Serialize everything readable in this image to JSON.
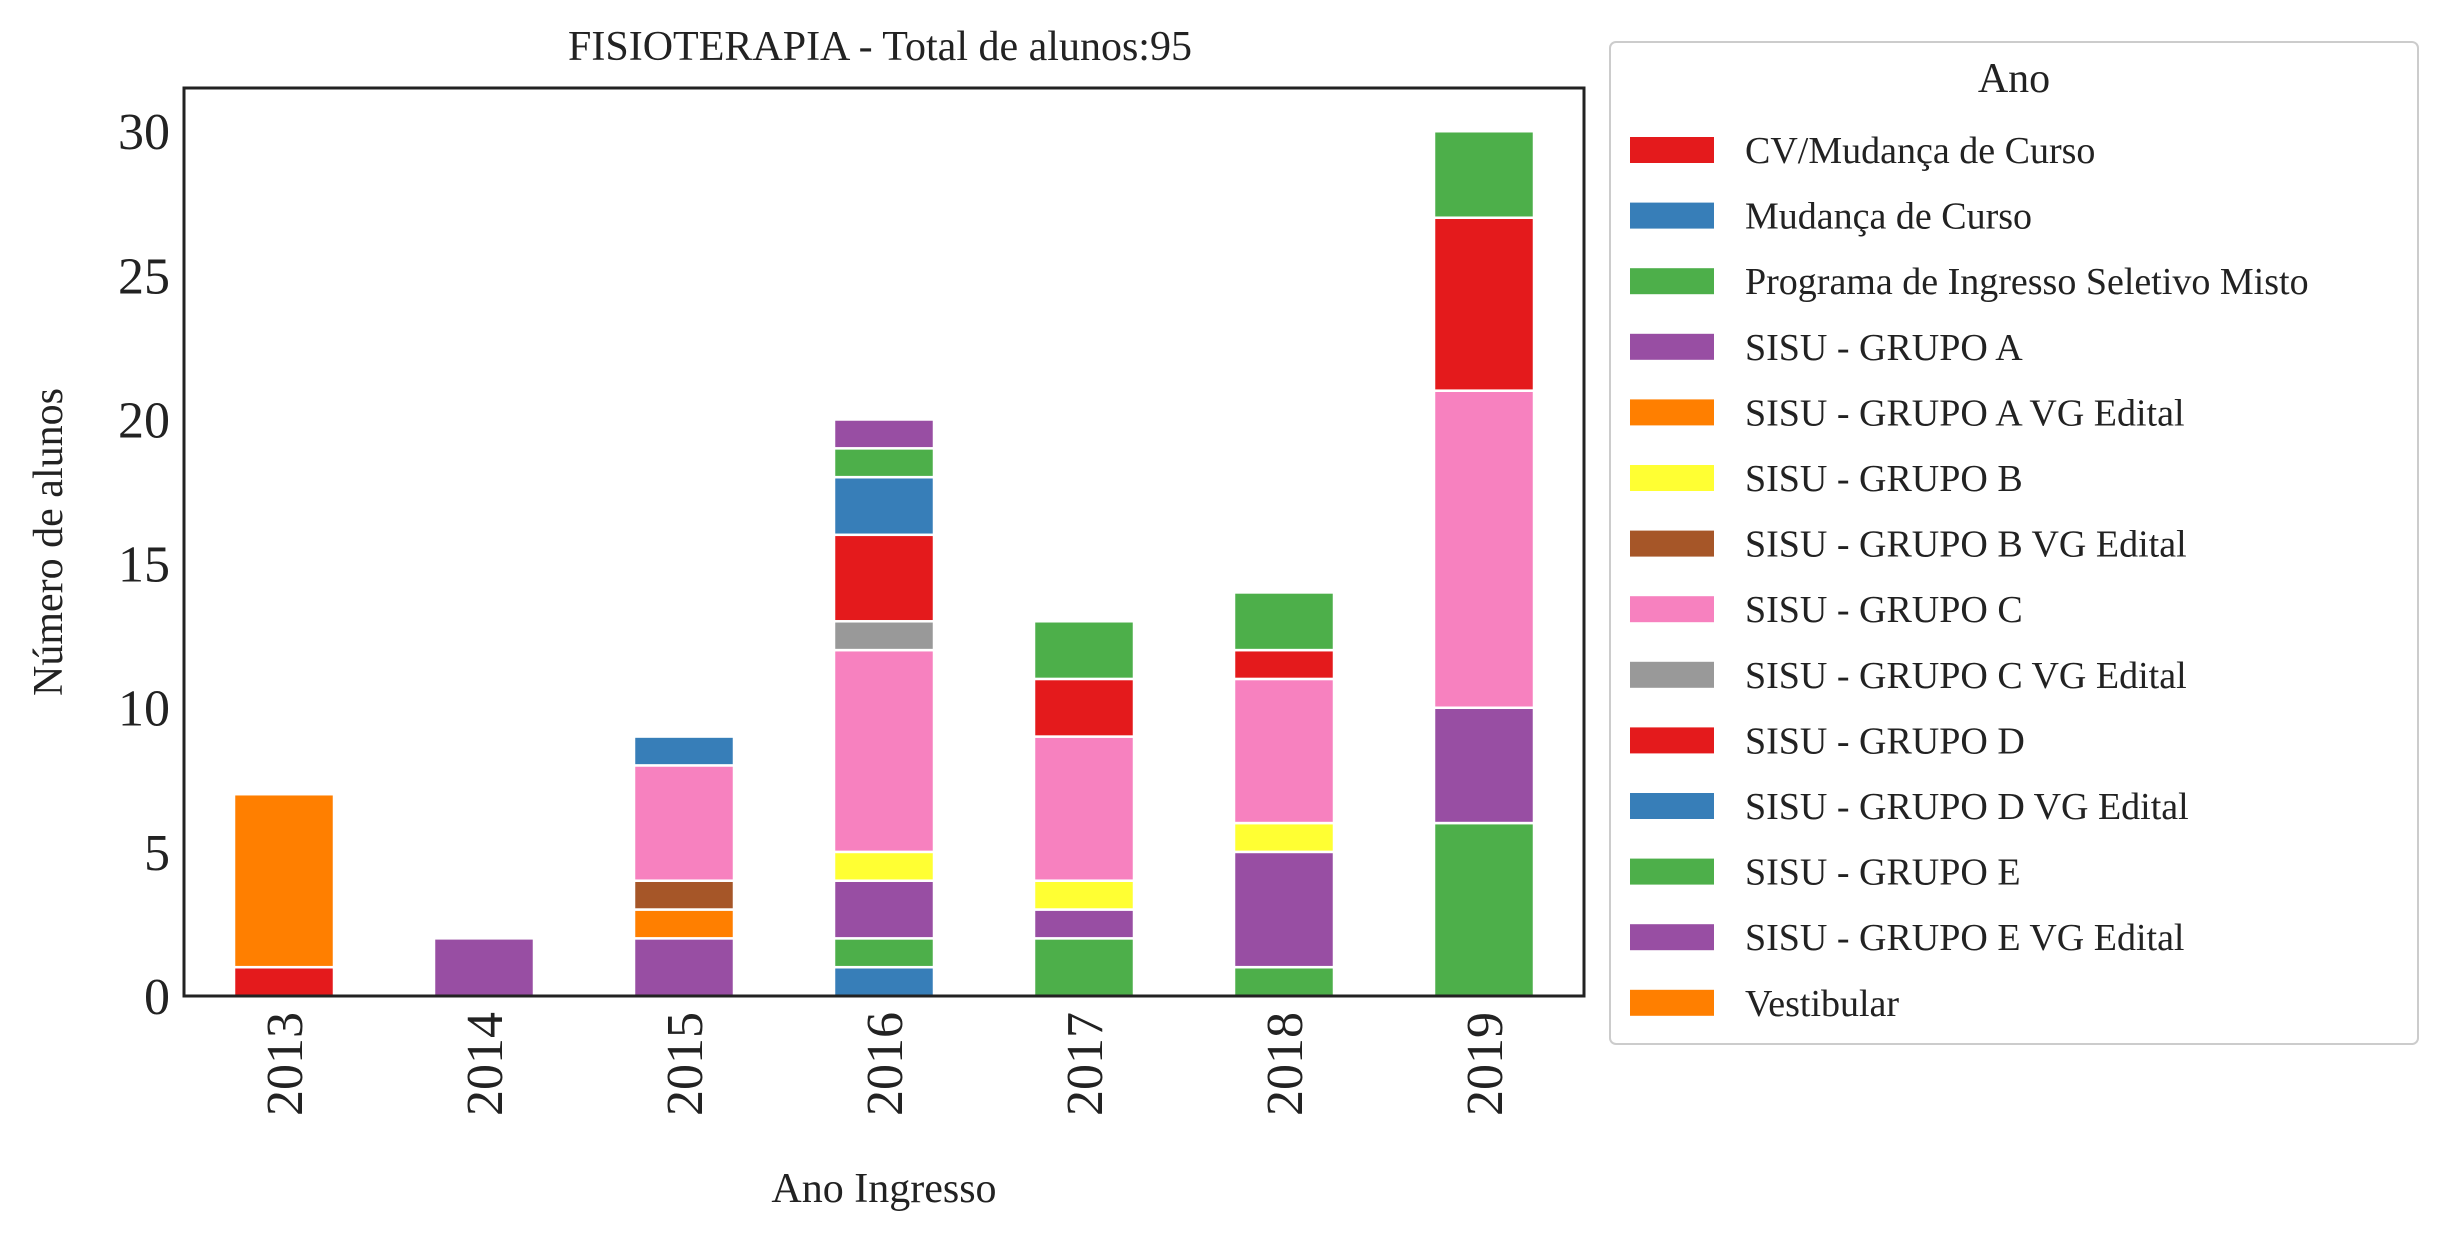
{
  "chart_data": {
    "type": "bar",
    "stacked": true,
    "title": "FISIOTERAPIA - Total de alunos:95",
    "xlabel": "Ano Ingresso",
    "ylabel": "Número de alunos",
    "ylim": [
      0,
      31.5
    ],
    "yticks": [
      0,
      5,
      10,
      15,
      20,
      25,
      30
    ],
    "categories": [
      "2013",
      "2014",
      "2015",
      "2016",
      "2017",
      "2018",
      "2019"
    ],
    "grid": false,
    "legend": {
      "title": "Ano",
      "placement": "outside-right"
    },
    "series": [
      {
        "name": "CV/Mudança de Curso",
        "color": "#e41a1c",
        "values": [
          1,
          0,
          0,
          0,
          0,
          0,
          0
        ]
      },
      {
        "name": "Mudança de Curso",
        "color": "#377eb8",
        "values": [
          0,
          0,
          0,
          1,
          0,
          0,
          0
        ]
      },
      {
        "name": "Programa de Ingresso Seletivo Misto",
        "color": "#4daf4a",
        "values": [
          0,
          0,
          0,
          1,
          2,
          1,
          6
        ]
      },
      {
        "name": "SISU - GRUPO A",
        "color": "#984ea3",
        "values": [
          0,
          2,
          2,
          2,
          1,
          4,
          4
        ]
      },
      {
        "name": "SISU - GRUPO A VG Edital",
        "color": "#ff7f00",
        "values": [
          0,
          0,
          1,
          0,
          0,
          0,
          0
        ]
      },
      {
        "name": "SISU - GRUPO B",
        "color": "#ffff33",
        "values": [
          0,
          0,
          0,
          1,
          1,
          1,
          0
        ]
      },
      {
        "name": "SISU - GRUPO B VG Edital",
        "color": "#a65628",
        "values": [
          0,
          0,
          1,
          0,
          0,
          0,
          0
        ]
      },
      {
        "name": "SISU - GRUPO C",
        "color": "#f781bf",
        "values": [
          0,
          0,
          4,
          7,
          5,
          5,
          11
        ]
      },
      {
        "name": "SISU - GRUPO C VG Edital",
        "color": "#999999",
        "values": [
          0,
          0,
          0,
          1,
          0,
          0,
          0
        ]
      },
      {
        "name": "SISU - GRUPO D",
        "color": "#e41a1c",
        "values": [
          0,
          0,
          0,
          3,
          2,
          1,
          6
        ]
      },
      {
        "name": "SISU - GRUPO D VG Edital",
        "color": "#377eb8",
        "values": [
          0,
          0,
          1,
          2,
          0,
          0,
          0
        ]
      },
      {
        "name": "SISU - GRUPO E",
        "color": "#4daf4a",
        "values": [
          0,
          0,
          0,
          1,
          2,
          2,
          3
        ]
      },
      {
        "name": "SISU - GRUPO E VG Edital",
        "color": "#984ea3",
        "values": [
          0,
          0,
          0,
          1,
          0,
          0,
          0
        ]
      },
      {
        "name": "Vestibular",
        "color": "#ff7f00",
        "values": [
          6,
          0,
          0,
          0,
          0,
          0,
          0
        ]
      }
    ]
  }
}
